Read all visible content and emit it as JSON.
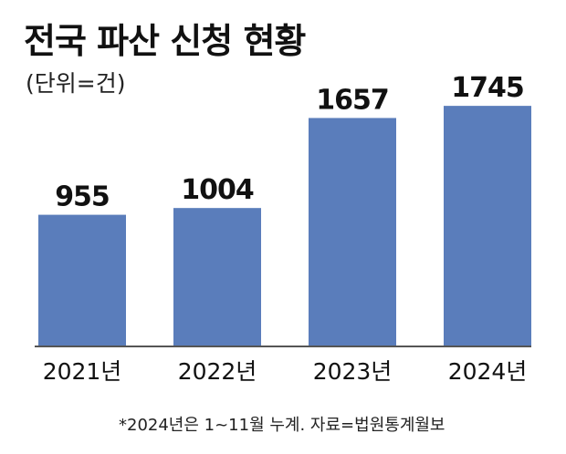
{
  "chart_data": {
    "type": "bar",
    "title": "전국 파산 신청 현황",
    "subtitle": "(단위=건)",
    "categories": [
      "2021년",
      "2022년",
      "2023년",
      "2024년"
    ],
    "values": [
      955,
      1004,
      1657,
      1745
    ],
    "ylim": [
      0,
      2050
    ],
    "grid": false,
    "legend": "none",
    "bar_color": "#5a7dbb",
    "axis_color": "#555555",
    "footnote": "*2024년은 1~11월 누계. 자료=법원통계월보"
  }
}
